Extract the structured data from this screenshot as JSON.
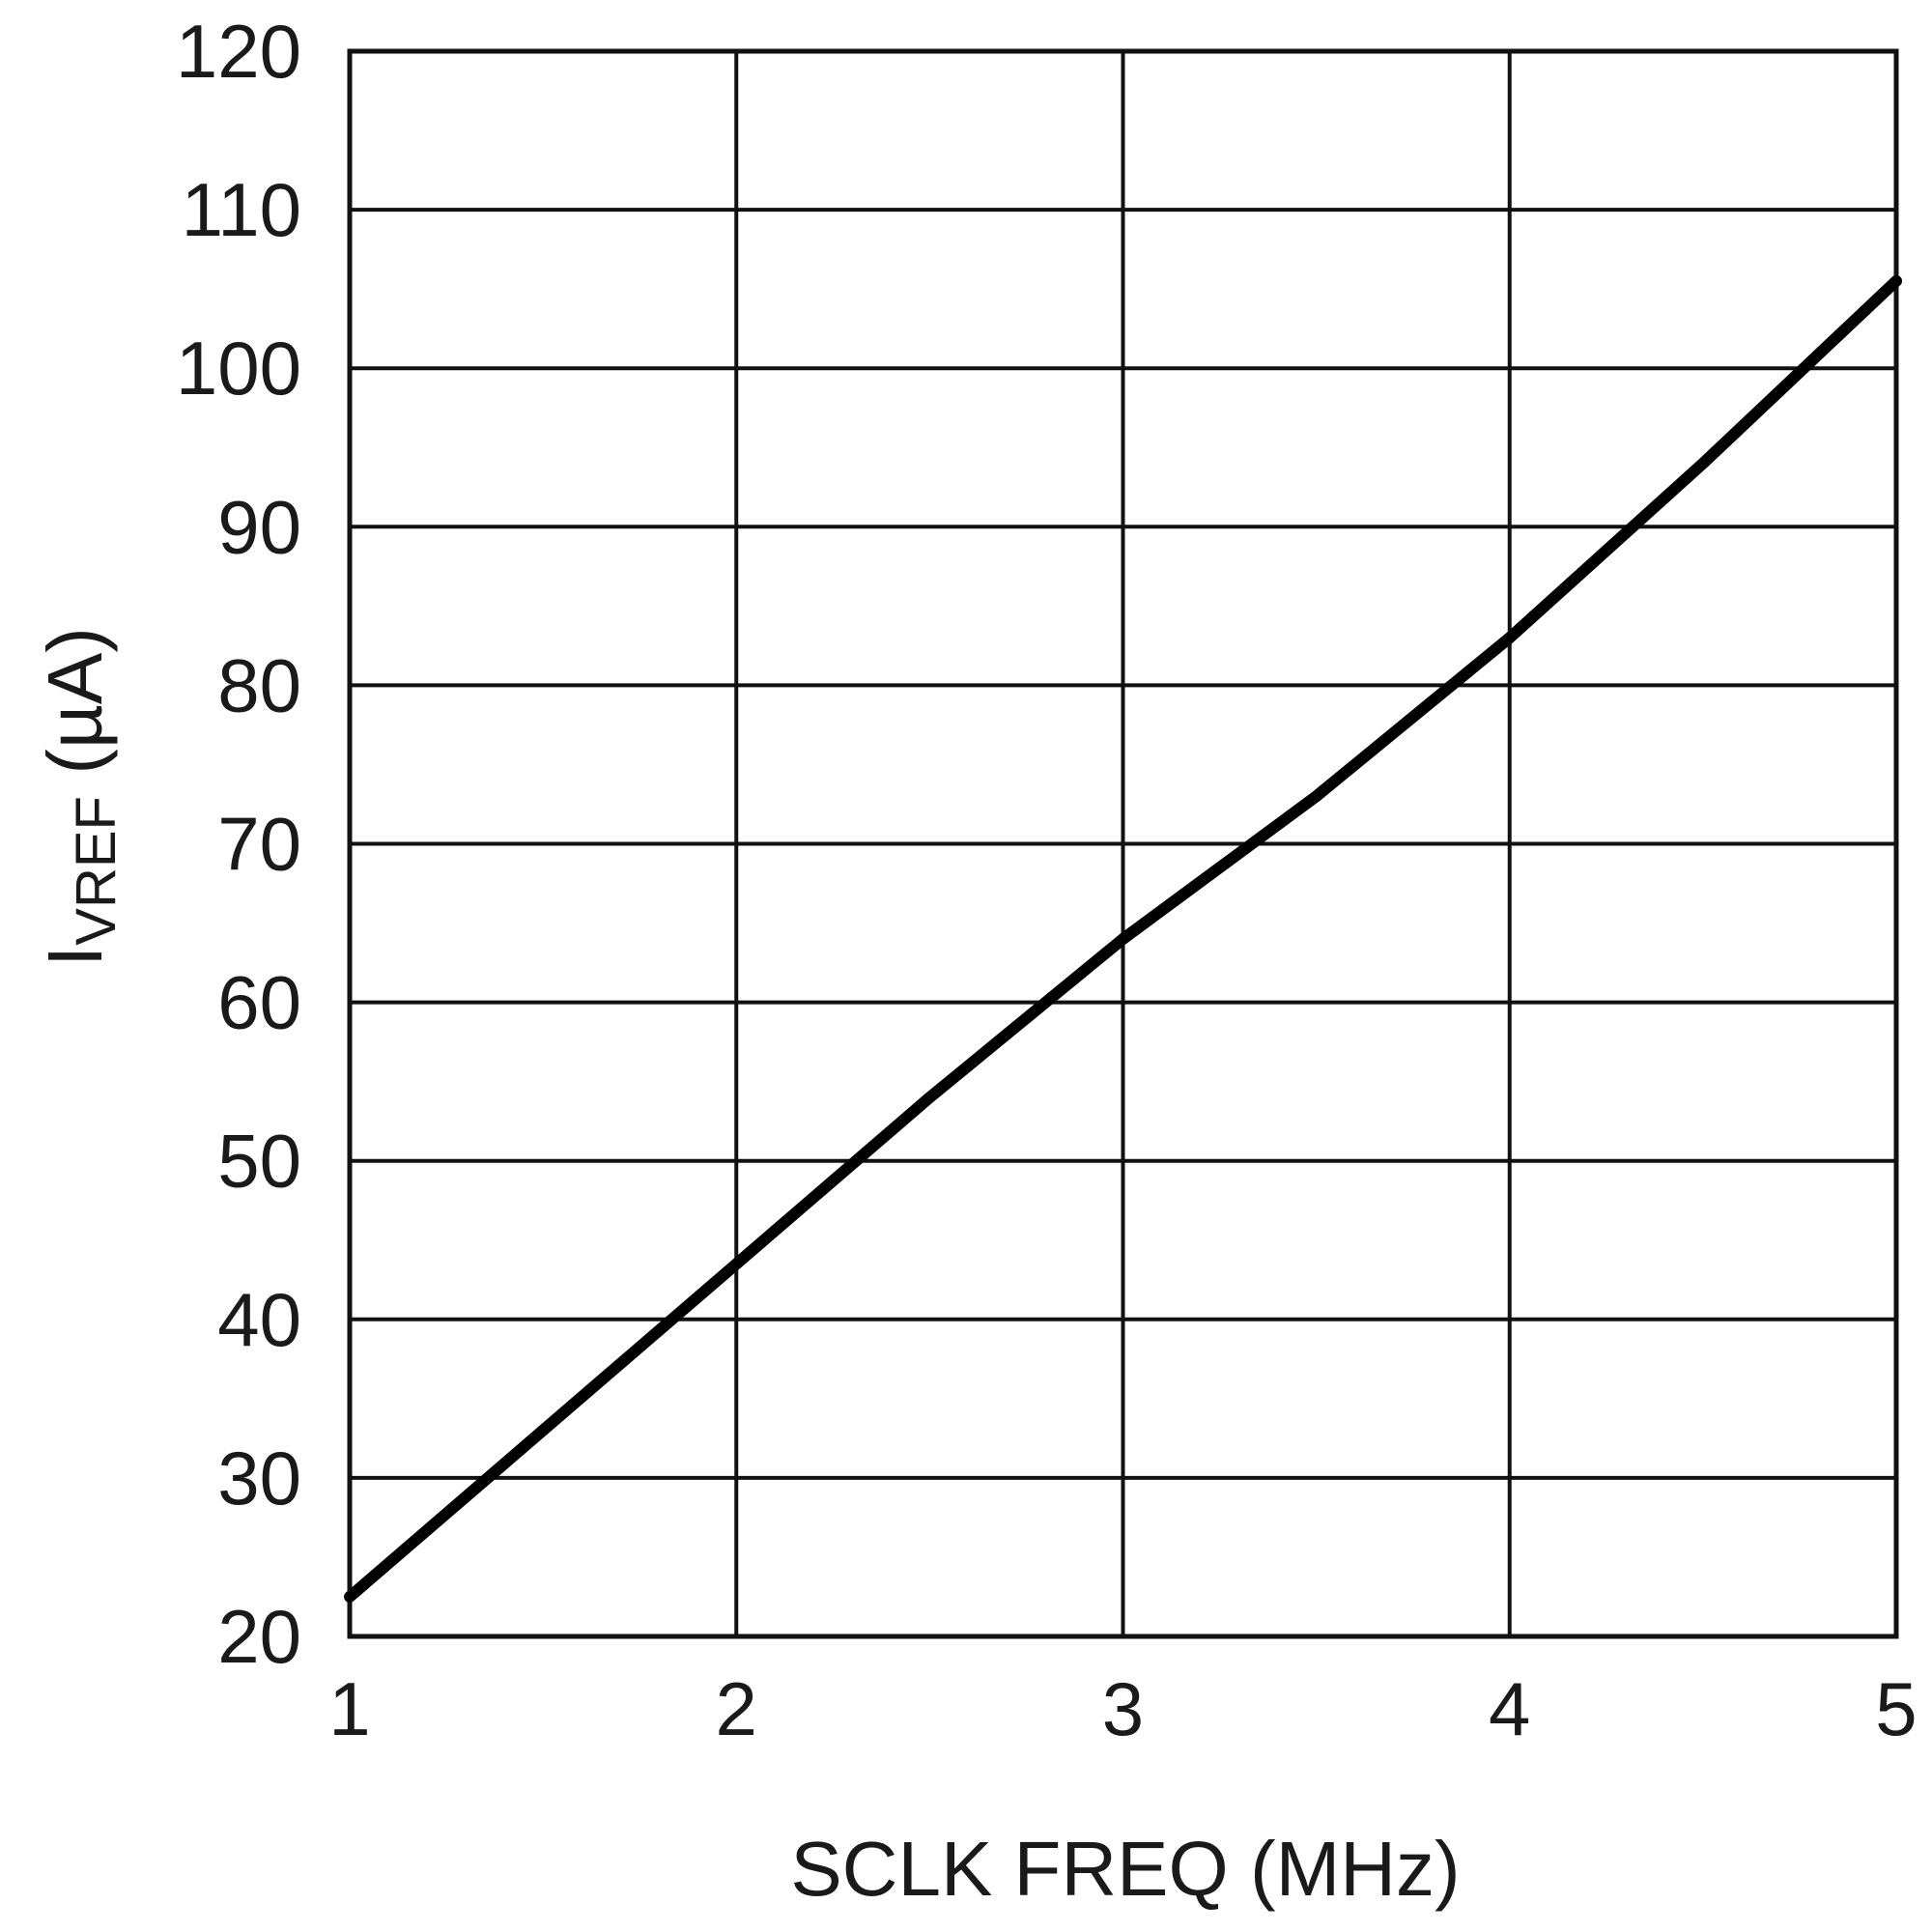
{
  "chart_data": {
    "type": "line",
    "title": "",
    "xlabel": "SCLK FREQ (MHz)",
    "ylabel_main": "I",
    "ylabel_sub": "VREF",
    "ylabel_unit": " (µA)",
    "xlim": [
      1,
      5
    ],
    "ylim": [
      20,
      120
    ],
    "xticks": [
      1,
      2,
      3,
      4,
      5
    ],
    "yticks": [
      20,
      30,
      40,
      50,
      60,
      70,
      80,
      90,
      100,
      110,
      120
    ],
    "grid": true,
    "series": [
      {
        "x": [
          1,
          1.5,
          2,
          2.5,
          3,
          3.5,
          4,
          4.5,
          5
        ],
        "y": [
          22.5,
          33,
          43.5,
          54,
          64,
          73,
          83,
          94,
          105.5
        ]
      }
    ]
  }
}
